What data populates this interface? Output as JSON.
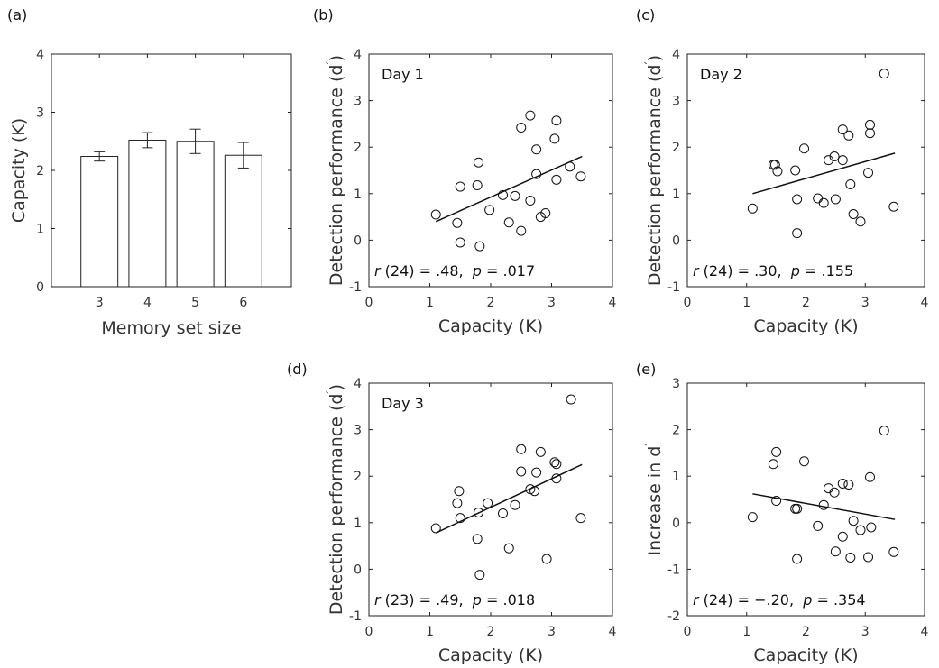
{
  "chart_data": [
    {
      "panel": "(a)",
      "type": "bar",
      "categories": [
        "3",
        "4",
        "5",
        "6"
      ],
      "values": [
        2.24,
        2.52,
        2.5,
        2.26
      ],
      "errors": [
        0.08,
        0.13,
        0.21,
        0.22
      ],
      "xlabel": "Memory set size",
      "ylabel": "Capacity (K)",
      "ylim": [
        0,
        4
      ],
      "yticks": [
        "0",
        "1",
        "2",
        "3",
        "4"
      ]
    },
    {
      "panel": "(b)",
      "type": "scatter",
      "annotation": "Day 1",
      "xlabel": "Capacity (K)",
      "ylabel_main": "Detection performance (d",
      "ylabel_sup": "′",
      "ylabel_close": ")",
      "xlim": [
        0,
        4
      ],
      "ylim": [
        -1,
        4
      ],
      "xticks": [
        "0",
        "1",
        "2",
        "3",
        "4"
      ],
      "yticks": [
        "-1",
        "0",
        "1",
        "2",
        "3",
        "4"
      ],
      "stat_r": "r",
      "stat_mid": " (24) = .48,  ",
      "stat_p": "p",
      "stat_end": " = .017",
      "fit": {
        "x": [
          1.1,
          3.5
        ],
        "y": [
          0.4,
          1.8
        ]
      },
      "points": [
        [
          1.1,
          0.55
        ],
        [
          1.45,
          0.37
        ],
        [
          1.5,
          1.15
        ],
        [
          1.5,
          -0.05
        ],
        [
          1.78,
          1.18
        ],
        [
          1.8,
          1.67
        ],
        [
          1.82,
          -0.13
        ],
        [
          1.98,
          0.65
        ],
        [
          2.2,
          0.97
        ],
        [
          2.3,
          0.38
        ],
        [
          2.4,
          0.95
        ],
        [
          2.5,
          0.2
        ],
        [
          2.5,
          2.42
        ],
        [
          2.65,
          2.68
        ],
        [
          2.65,
          0.85
        ],
        [
          2.75,
          1.42
        ],
        [
          2.75,
          1.95
        ],
        [
          2.82,
          0.5
        ],
        [
          2.9,
          0.58
        ],
        [
          3.05,
          2.18
        ],
        [
          3.08,
          2.57
        ],
        [
          3.08,
          1.3
        ],
        [
          3.3,
          1.58
        ],
        [
          3.48,
          1.37
        ]
      ]
    },
    {
      "panel": "(c)",
      "type": "scatter",
      "annotation": "Day 2",
      "xlabel": "Capacity (K)",
      "ylabel_main": "Detection performance (d",
      "ylabel_sup": "′",
      "ylabel_close": ")",
      "xlim": [
        0,
        4
      ],
      "ylim": [
        -1,
        4
      ],
      "xticks": [
        "0",
        "1",
        "2",
        "3",
        "4"
      ],
      "yticks": [
        "-1",
        "0",
        "1",
        "2",
        "3",
        "4"
      ],
      "stat_r": "r",
      "stat_mid": " (24) = .30,  ",
      "stat_p": "p",
      "stat_end": " = .155",
      "fit": {
        "x": [
          1.1,
          3.5
        ],
        "y": [
          1.0,
          1.87
        ]
      },
      "points": [
        [
          1.1,
          0.68
        ],
        [
          1.45,
          1.62
        ],
        [
          1.48,
          1.62
        ],
        [
          1.52,
          1.48
        ],
        [
          1.82,
          1.5
        ],
        [
          1.85,
          0.88
        ],
        [
          1.85,
          0.15
        ],
        [
          1.97,
          1.97
        ],
        [
          2.2,
          0.9
        ],
        [
          2.3,
          0.8
        ],
        [
          2.38,
          1.72
        ],
        [
          2.48,
          1.8
        ],
        [
          2.5,
          0.88
        ],
        [
          2.62,
          2.38
        ],
        [
          2.62,
          1.72
        ],
        [
          2.72,
          2.25
        ],
        [
          2.75,
          1.2
        ],
        [
          2.8,
          0.56
        ],
        [
          2.92,
          0.4
        ],
        [
          3.05,
          1.45
        ],
        [
          3.08,
          2.48
        ],
        [
          3.08,
          2.3
        ],
        [
          3.32,
          3.58
        ],
        [
          3.48,
          0.72
        ]
      ]
    },
    {
      "panel": "(d)",
      "type": "scatter",
      "annotation": "Day 3",
      "xlabel": "Capacity (K)",
      "ylabel_main": "Detection performance (d",
      "ylabel_sup": "′",
      "ylabel_close": ")",
      "xlim": [
        0,
        4
      ],
      "ylim": [
        -1,
        4
      ],
      "xticks": [
        "0",
        "1",
        "2",
        "3",
        "4"
      ],
      "yticks": [
        "-1",
        "0",
        "1",
        "2",
        "3",
        "4"
      ],
      "stat_r": "r",
      "stat_mid": " (23) = .49,  ",
      "stat_p": "p",
      "stat_end": " = .018",
      "fit": {
        "x": [
          1.1,
          3.5
        ],
        "y": [
          0.78,
          2.25
        ]
      },
      "points": [
        [
          1.1,
          0.88
        ],
        [
          1.45,
          1.42
        ],
        [
          1.48,
          1.68
        ],
        [
          1.5,
          1.1
        ],
        [
          1.78,
          0.65
        ],
        [
          1.8,
          1.22
        ],
        [
          1.82,
          -0.12
        ],
        [
          1.95,
          1.42
        ],
        [
          2.2,
          1.2
        ],
        [
          2.3,
          0.45
        ],
        [
          2.4,
          1.38
        ],
        [
          2.5,
          2.58
        ],
        [
          2.5,
          2.1
        ],
        [
          2.65,
          1.72
        ],
        [
          2.72,
          1.68
        ],
        [
          2.75,
          2.08
        ],
        [
          2.82,
          2.52
        ],
        [
          2.92,
          0.22
        ],
        [
          3.05,
          2.3
        ],
        [
          3.08,
          2.26
        ],
        [
          3.08,
          1.95
        ],
        [
          3.32,
          3.65
        ],
        [
          3.48,
          1.1
        ]
      ]
    },
    {
      "panel": "(e)",
      "type": "scatter",
      "xlabel": "Capacity (K)",
      "ylabel_main": "Increase in d",
      "ylabel_sup": "′",
      "ylabel_close": "",
      "xlim": [
        0,
        4
      ],
      "ylim": [
        -2,
        3
      ],
      "xticks": [
        "0",
        "1",
        "2",
        "3",
        "4"
      ],
      "yticks": [
        "-2",
        "-1",
        "0",
        "1",
        "2",
        "3"
      ],
      "stat_r": "r",
      "stat_mid": " (24) = −.20,  ",
      "stat_p": "p",
      "stat_end": " = .354",
      "fit": {
        "x": [
          1.1,
          3.5
        ],
        "y": [
          0.62,
          0.07
        ]
      },
      "points": [
        [
          1.1,
          0.12
        ],
        [
          1.45,
          1.26
        ],
        [
          1.5,
          1.52
        ],
        [
          1.5,
          0.47
        ],
        [
          1.82,
          0.3
        ],
        [
          1.85,
          0.3
        ],
        [
          1.85,
          -0.78
        ],
        [
          1.97,
          1.32
        ],
        [
          2.2,
          -0.07
        ],
        [
          2.3,
          0.38
        ],
        [
          2.38,
          0.74
        ],
        [
          2.48,
          0.65
        ],
        [
          2.5,
          -0.62
        ],
        [
          2.62,
          0.84
        ],
        [
          2.62,
          -0.3
        ],
        [
          2.72,
          0.82
        ],
        [
          2.75,
          -0.75
        ],
        [
          2.8,
          0.04
        ],
        [
          2.92,
          -0.16
        ],
        [
          3.05,
          -0.74
        ],
        [
          3.08,
          0.98
        ],
        [
          3.1,
          -0.1
        ],
        [
          3.32,
          1.98
        ],
        [
          3.48,
          -0.63
        ]
      ]
    }
  ]
}
